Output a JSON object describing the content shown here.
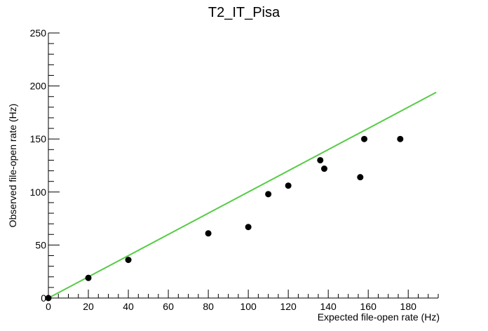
{
  "chart_data": {
    "type": "scatter",
    "title": "T2_IT_Pisa",
    "xlabel": "Expected file-open rate (Hz)",
    "ylabel": "Observed file-open rate (Hz)",
    "xlim": [
      0,
      195
    ],
    "ylim": [
      0,
      250
    ],
    "xticks": [
      0,
      20,
      40,
      60,
      80,
      100,
      120,
      140,
      160,
      180
    ],
    "yticks": [
      0,
      50,
      100,
      150,
      200,
      250
    ],
    "grid": false,
    "legend": "none",
    "series": [
      {
        "marker_color": "#000000",
        "points": [
          {
            "x": 0,
            "y": 0
          },
          {
            "x": 20,
            "y": 19
          },
          {
            "x": 40,
            "y": 36
          },
          {
            "x": 80,
            "y": 61
          },
          {
            "x": 100,
            "y": 67
          },
          {
            "x": 110,
            "y": 98
          },
          {
            "x": 120,
            "y": 106
          },
          {
            "x": 136,
            "y": 130
          },
          {
            "x": 138,
            "y": 122
          },
          {
            "x": 156,
            "y": 114
          },
          {
            "x": 158,
            "y": 150
          },
          {
            "x": 176,
            "y": 150
          }
        ]
      }
    ],
    "reference_line": {
      "color": "#55cc44",
      "from": {
        "x": 0,
        "y": 0
      },
      "to": {
        "x": 194,
        "y": 194
      }
    }
  }
}
